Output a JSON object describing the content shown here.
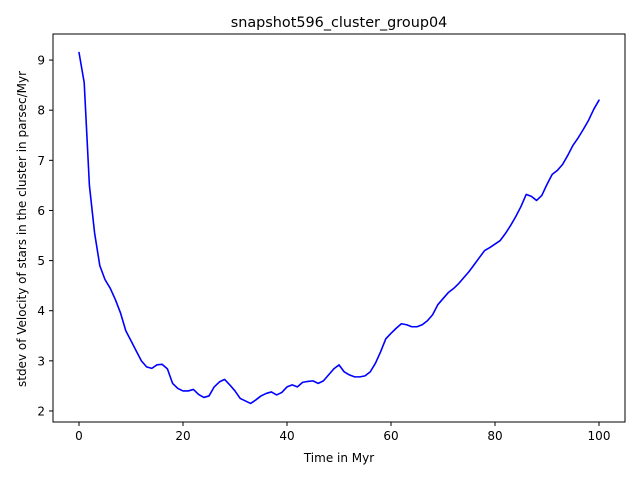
{
  "chart_data": {
    "type": "line",
    "title": "snapshot596_cluster_group04",
    "xlabel": "Time in Myr",
    "ylabel": "stdev of Velocity of stars in the cluster in parsec/Myr",
    "xlim": [
      -5,
      105
    ],
    "ylim": [
      1.78,
      9.52
    ],
    "xticks": [
      0,
      20,
      40,
      60,
      80,
      100
    ],
    "yticks": [
      2,
      3,
      4,
      5,
      6,
      7,
      8,
      9
    ],
    "grid": false,
    "series": [
      {
        "color": "#0000ff",
        "x": [
          0,
          1,
          2,
          3,
          4,
          5,
          6,
          7,
          8,
          9,
          10,
          11,
          12,
          13,
          14,
          15,
          16,
          17,
          18,
          19,
          20,
          21,
          22,
          23,
          24,
          25,
          26,
          27,
          28,
          29,
          30,
          31,
          32,
          33,
          34,
          35,
          36,
          37,
          38,
          39,
          40,
          41,
          42,
          43,
          44,
          45,
          46,
          47,
          48,
          49,
          50,
          51,
          52,
          53,
          54,
          55,
          56,
          57,
          58,
          59,
          60,
          61,
          62,
          63,
          64,
          65,
          66,
          67,
          68,
          69,
          70,
          71,
          72,
          73,
          74,
          75,
          76,
          77,
          78,
          79,
          80,
          81,
          82,
          83,
          84,
          85,
          86,
          87,
          88,
          89,
          90,
          91,
          92,
          93,
          94,
          95,
          96,
          97,
          98,
          99,
          100
        ],
        "y": [
          9.15,
          8.55,
          6.5,
          5.55,
          4.9,
          4.62,
          4.45,
          4.22,
          3.95,
          3.6,
          3.4,
          3.2,
          3.0,
          2.88,
          2.85,
          2.92,
          2.93,
          2.84,
          2.55,
          2.45,
          2.4,
          2.4,
          2.43,
          2.33,
          2.27,
          2.3,
          2.48,
          2.58,
          2.63,
          2.52,
          2.4,
          2.25,
          2.2,
          2.15,
          2.22,
          2.3,
          2.35,
          2.38,
          2.32,
          2.37,
          2.48,
          2.52,
          2.48,
          2.57,
          2.59,
          2.6,
          2.55,
          2.6,
          2.72,
          2.84,
          2.92,
          2.78,
          2.72,
          2.68,
          2.68,
          2.7,
          2.78,
          2.95,
          3.18,
          3.44,
          3.55,
          3.65,
          3.74,
          3.72,
          3.68,
          3.68,
          3.72,
          3.8,
          3.92,
          4.12,
          4.24,
          4.36,
          4.44,
          4.54,
          4.66,
          4.78,
          4.92,
          5.06,
          5.2,
          5.26,
          5.33,
          5.4,
          5.54,
          5.7,
          5.88,
          6.08,
          6.32,
          6.28,
          6.2,
          6.3,
          6.52,
          6.72,
          6.8,
          6.92,
          7.1,
          7.3,
          7.45,
          7.62,
          7.8,
          8.02,
          8.2
        ]
      }
    ]
  }
}
